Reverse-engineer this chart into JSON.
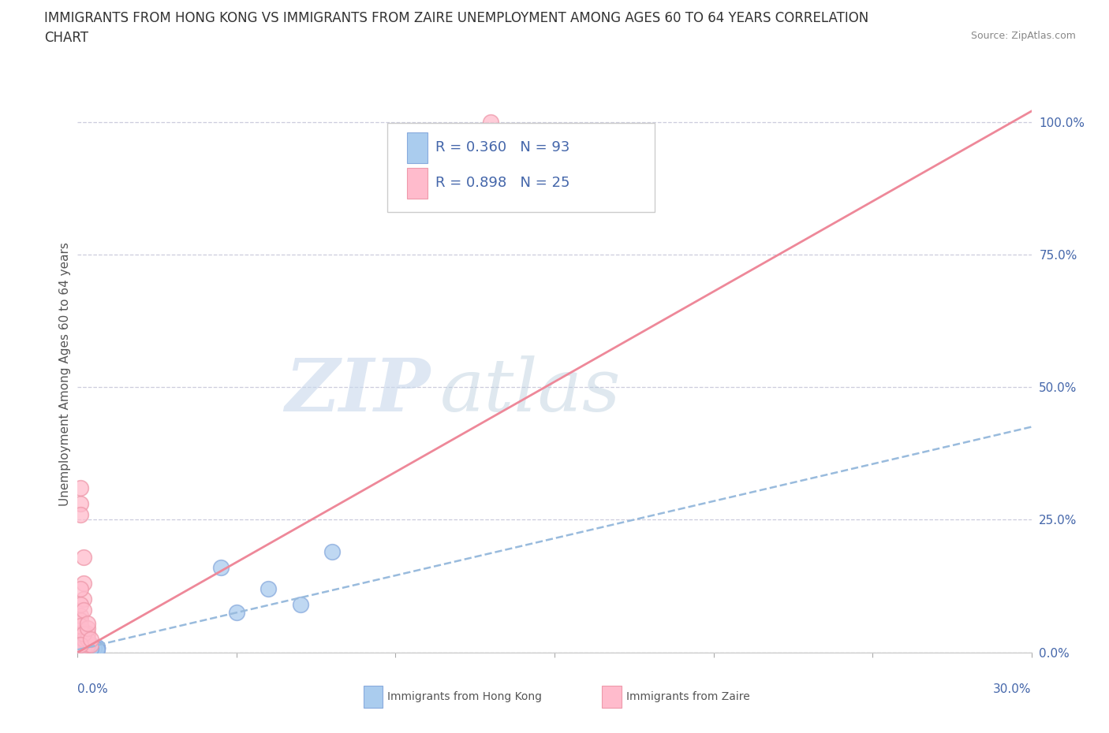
{
  "title_line1": "IMMIGRANTS FROM HONG KONG VS IMMIGRANTS FROM ZAIRE UNEMPLOYMENT AMONG AGES 60 TO 64 YEARS CORRELATION",
  "title_line2": "CHART",
  "source_text": "Source: ZipAtlas.com",
  "ylabel": "Unemployment Among Ages 60 to 64 years",
  "yticks": [
    0.0,
    0.25,
    0.5,
    0.75,
    1.0
  ],
  "ytick_labels": [
    "0.0%",
    "25.0%",
    "50.0%",
    "75.0%",
    "100.0%"
  ],
  "xlim": [
    0.0,
    0.3
  ],
  "ylim": [
    0.0,
    1.05
  ],
  "hk_color": "#aaccee",
  "hk_edge_color": "#88aadd",
  "zaire_color": "#ffbbcc",
  "zaire_edge_color": "#ee99aa",
  "hk_trend_color": "#99bbdd",
  "zaire_trend_color": "#ee8899",
  "hk_R": 0.36,
  "hk_N": 93,
  "zaire_R": 0.898,
  "zaire_N": 25,
  "legend_label_hk": "Immigrants from Hong Kong",
  "legend_label_zaire": "Immigrants from Zaire",
  "watermark_zip": "ZIP",
  "watermark_atlas": "atlas",
  "background_color": "#ffffff",
  "grid_color": "#ccccdd",
  "text_color": "#4466aa",
  "title_color": "#333333",
  "hk_scatter_x": [
    0.001,
    0.002,
    0.001,
    0.003,
    0.002,
    0.001,
    0.004,
    0.003,
    0.005,
    0.002,
    0.001,
    0.006,
    0.003,
    0.002,
    0.004,
    0.005,
    0.003,
    0.002,
    0.001,
    0.003,
    0.004,
    0.002,
    0.003,
    0.005,
    0.001,
    0.006,
    0.004,
    0.003,
    0.002,
    0.001,
    0.005,
    0.003,
    0.002,
    0.004,
    0.001,
    0.003,
    0.002,
    0.004,
    0.001,
    0.003,
    0.002,
    0.005,
    0.001,
    0.006,
    0.004,
    0.003,
    0.002,
    0.001,
    0.003,
    0.004,
    0.005,
    0.002,
    0.006,
    0.003,
    0.001,
    0.002,
    0.004,
    0.005,
    0.003,
    0.001,
    0.002,
    0.006,
    0.004,
    0.003,
    0.005,
    0.002,
    0.001,
    0.003,
    0.004,
    0.002,
    0.001,
    0.005,
    0.003,
    0.006,
    0.004,
    0.002,
    0.003,
    0.001,
    0.005,
    0.002,
    0.004,
    0.006,
    0.003,
    0.001,
    0.002,
    0.003,
    0.004,
    0.002,
    0.05,
    0.06,
    0.045,
    0.07,
    0.08
  ],
  "hk_scatter_y": [
    0.005,
    0.008,
    0.012,
    0.006,
    0.01,
    0.015,
    0.007,
    0.011,
    0.009,
    0.006,
    0.013,
    0.008,
    0.01,
    0.016,
    0.007,
    0.009,
    0.012,
    0.014,
    0.006,
    0.011,
    0.008,
    0.018,
    0.007,
    0.01,
    0.013,
    0.009,
    0.015,
    0.007,
    0.011,
    0.016,
    0.008,
    0.013,
    0.01,
    0.006,
    0.012,
    0.009,
    0.014,
    0.007,
    0.011,
    0.008,
    0.015,
    0.006,
    0.013,
    0.009,
    0.01,
    0.007,
    0.012,
    0.016,
    0.008,
    0.011,
    0.006,
    0.014,
    0.009,
    0.01,
    0.013,
    0.007,
    0.011,
    0.008,
    0.015,
    0.012,
    0.009,
    0.006,
    0.011,
    0.008,
    0.01,
    0.014,
    0.007,
    0.009,
    0.012,
    0.011,
    0.015,
    0.008,
    0.006,
    0.01,
    0.009,
    0.013,
    0.007,
    0.011,
    0.008,
    0.012,
    0.009,
    0.006,
    0.014,
    0.01,
    0.008,
    0.011,
    0.007,
    0.009,
    0.075,
    0.12,
    0.16,
    0.09,
    0.19
  ],
  "zaire_scatter_x": [
    0.001,
    0.002,
    0.001,
    0.003,
    0.001,
    0.002,
    0.001,
    0.003,
    0.002,
    0.001,
    0.004,
    0.002,
    0.001,
    0.003,
    0.001,
    0.002,
    0.001,
    0.003,
    0.002,
    0.001,
    0.13,
    0.004,
    0.002,
    0.001,
    0.003
  ],
  "zaire_scatter_y": [
    0.006,
    0.04,
    0.28,
    0.015,
    0.31,
    0.025,
    0.07,
    0.035,
    0.1,
    0.06,
    0.015,
    0.13,
    0.05,
    0.025,
    0.09,
    0.035,
    0.26,
    0.045,
    0.08,
    0.015,
    1.0,
    0.025,
    0.18,
    0.12,
    0.055
  ],
  "hk_trend_x": [
    0.0,
    0.3
  ],
  "hk_trend_y": [
    0.005,
    0.425
  ],
  "zaire_trend_x": [
    0.0,
    0.3
  ],
  "zaire_trend_y": [
    0.0,
    1.02
  ],
  "title_fontsize": 12,
  "axis_label_fontsize": 11,
  "tick_fontsize": 11,
  "legend_fontsize": 13,
  "source_fontsize": 9
}
